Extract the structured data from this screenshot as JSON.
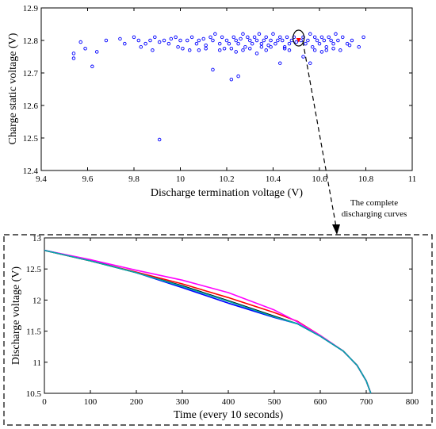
{
  "chart_data": [
    {
      "type": "scatter",
      "title": "",
      "xlabel": "Discharge termination voltage (V)",
      "ylabel": "Charge static voltage (V)",
      "xlim": [
        9.4,
        11
      ],
      "ylim": [
        12.4,
        12.9
      ],
      "xticks": [
        9.4,
        9.6,
        9.8,
        10,
        10.2,
        10.4,
        10.6,
        10.8,
        11
      ],
      "yticks": [
        12.4,
        12.5,
        12.6,
        12.7,
        12.8,
        12.9
      ],
      "xtick_labels": [
        "9.4",
        "9.6",
        "9.8",
        "10",
        "10.2",
        "10.4",
        "10.6",
        "10.8",
        "11"
      ],
      "ytick_labels": [
        "12.4",
        "12.5",
        "12.6",
        "12.7",
        "12.8",
        "12.9"
      ],
      "grid": false,
      "colors": {
        "points": "#0000ff",
        "highlight": "#ff0000",
        "circle": "#000000"
      },
      "highlight": {
        "x": 10.51,
        "y": 12.8,
        "marker": "triangle-down"
      },
      "series": [
        {
          "marker": "circle-open",
          "x": [
            9.54,
            9.54,
            9.57,
            9.59,
            9.62,
            9.64,
            9.68,
            9.74,
            9.76,
            9.8,
            9.82,
            9.85,
            9.87,
            9.89,
            9.91,
            9.93,
            9.95,
            9.96,
            9.98,
            10.0,
            10.01,
            10.03,
            10.05,
            10.07,
            10.08,
            10.1,
            10.11,
            10.13,
            10.14,
            10.15,
            10.17,
            10.18,
            10.2,
            10.21,
            10.22,
            10.23,
            10.24,
            10.25,
            10.26,
            10.27,
            10.28,
            10.29,
            10.3,
            10.31,
            10.32,
            10.33,
            10.34,
            10.35,
            10.36,
            10.37,
            10.38,
            10.39,
            10.4,
            10.41,
            10.42,
            10.43,
            10.44,
            10.45,
            10.46,
            10.47,
            10.48,
            10.49,
            10.5,
            10.52,
            10.53,
            10.54,
            10.55,
            10.56,
            10.57,
            10.58,
            10.59,
            10.6,
            10.61,
            10.62,
            10.63,
            10.64,
            10.65,
            10.66,
            10.67,
            10.68,
            10.7,
            10.72,
            10.74,
            10.77,
            10.79,
            9.91,
            10.22,
            10.25,
            10.14,
            10.43,
            10.56,
            10.53,
            10.61,
            10.63,
            10.33,
            10.24,
            9.99,
            10.04,
            10.11,
            10.17,
            10.27,
            10.3,
            10.37,
            10.39,
            10.45,
            10.47,
            10.58,
            10.66,
            10.69,
            10.73,
            9.88,
            9.83,
            10.08,
            10.19,
            10.35
          ],
          "y": [
            12.745,
            12.76,
            12.795,
            12.775,
            12.72,
            12.765,
            12.8,
            12.805,
            12.79,
            12.81,
            12.8,
            12.79,
            12.8,
            12.81,
            12.795,
            12.8,
            12.79,
            12.805,
            12.81,
            12.8,
            12.775,
            12.8,
            12.81,
            12.79,
            12.8,
            12.805,
            12.785,
            12.81,
            12.8,
            12.82,
            12.79,
            12.81,
            12.8,
            12.79,
            12.775,
            12.81,
            12.8,
            12.79,
            12.805,
            12.82,
            12.78,
            12.81,
            12.8,
            12.79,
            12.81,
            12.8,
            12.82,
            12.79,
            12.8,
            12.81,
            12.785,
            12.8,
            12.82,
            12.79,
            12.8,
            12.81,
            12.8,
            12.78,
            12.81,
            12.79,
            12.8,
            12.81,
            12.795,
            12.8,
            12.81,
            12.79,
            12.8,
            12.82,
            12.78,
            12.81,
            12.8,
            12.79,
            12.81,
            12.8,
            12.78,
            12.81,
            12.8,
            12.79,
            12.82,
            12.8,
            12.81,
            12.79,
            12.8,
            12.78,
            12.81,
            12.495,
            12.68,
            12.69,
            12.71,
            12.73,
            12.73,
            12.75,
            12.765,
            12.77,
            12.76,
            12.765,
            12.78,
            12.77,
            12.775,
            12.77,
            12.77,
            12.775,
            12.77,
            12.78,
            12.775,
            12.77,
            12.77,
            12.775,
            12.77,
            12.785,
            12.77,
            12.78,
            12.77,
            12.775,
            12.78
          ]
        }
      ]
    },
    {
      "type": "line",
      "title": "",
      "xlabel": "Time (every 10 seconds)",
      "ylabel": "Discharge voltage (V)",
      "xlim": [
        0,
        800
      ],
      "ylim": [
        10.5,
        13
      ],
      "xticks": [
        0,
        100,
        200,
        300,
        400,
        500,
        600,
        700,
        800
      ],
      "yticks": [
        10.5,
        11,
        11.5,
        12,
        12.5,
        13
      ],
      "xtick_labels": [
        "0",
        "100",
        "200",
        "300",
        "400",
        "500",
        "600",
        "700",
        "800"
      ],
      "ytick_labels": [
        "10.5",
        "11",
        "11.5",
        "12",
        "12.5",
        "13"
      ],
      "grid": false,
      "series": [
        {
          "color": "#000000",
          "x": [
            0,
            100,
            200,
            300,
            400,
            500,
            550,
            600,
            650,
            680,
            700,
            710
          ],
          "y": [
            12.8,
            12.63,
            12.44,
            12.23,
            11.99,
            11.74,
            11.62,
            11.42,
            11.18,
            10.95,
            10.7,
            10.5
          ]
        },
        {
          "color": "#0000ff",
          "x": [
            0,
            100,
            200,
            300,
            400,
            500,
            550,
            600,
            650,
            680,
            700,
            710
          ],
          "y": [
            12.8,
            12.64,
            12.44,
            12.2,
            11.95,
            11.72,
            11.62,
            11.42,
            11.18,
            10.95,
            10.7,
            10.5
          ]
        },
        {
          "color": "#ff0000",
          "x": [
            0,
            100,
            200,
            300,
            400,
            500,
            550,
            600,
            650,
            680,
            700,
            710
          ],
          "y": [
            12.8,
            12.63,
            12.45,
            12.26,
            12.04,
            11.8,
            11.66,
            11.43,
            11.18,
            10.95,
            10.7,
            10.5
          ]
        },
        {
          "color": "#ff00ff",
          "x": [
            0,
            100,
            200,
            300,
            400,
            500,
            550,
            600,
            650,
            680,
            700,
            710
          ],
          "y": [
            12.8,
            12.65,
            12.48,
            12.32,
            12.12,
            11.84,
            11.65,
            11.43,
            11.18,
            10.95,
            10.7,
            10.5
          ]
        },
        {
          "color": "#00aaaa",
          "x": [
            0,
            100,
            200,
            300,
            400,
            500,
            550,
            600,
            650,
            680,
            700,
            710
          ],
          "y": [
            12.8,
            12.63,
            12.44,
            12.22,
            11.98,
            11.73,
            11.62,
            11.42,
            11.18,
            10.95,
            10.7,
            10.5
          ]
        }
      ]
    }
  ],
  "annotation": {
    "line1": "The complete",
    "line2": "discharging curves"
  }
}
